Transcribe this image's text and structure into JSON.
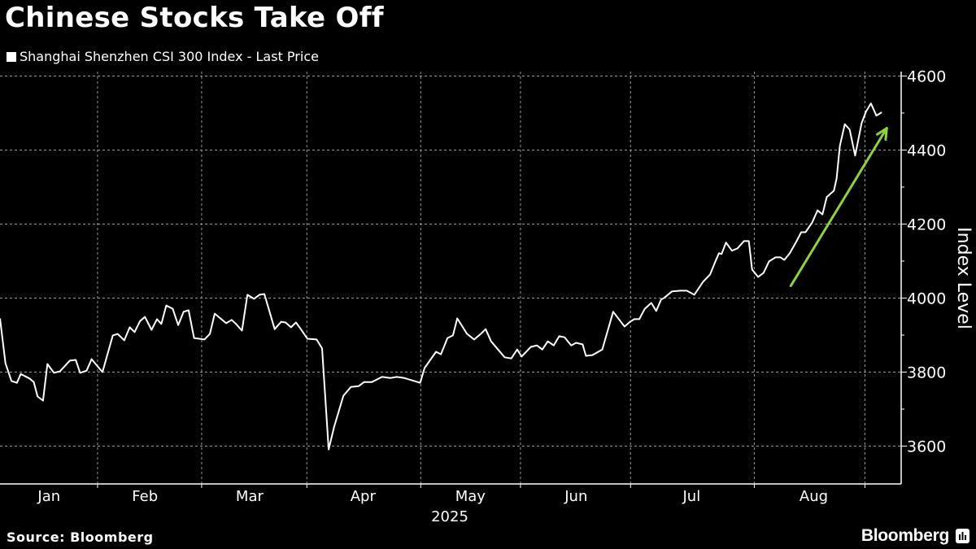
{
  "chart_data": {
    "type": "line",
    "title": "Chinese Stocks Take Off",
    "legend": [
      "Shanghai Shenzhen CSI 300 Index - Last Price"
    ],
    "legend_placement": "top-left",
    "xlabel": "2025",
    "ylabel": "Index Level",
    "x_unit": "trading session index (approx.)",
    "xlim": [
      0,
      164.9
    ],
    "ylim": [
      3500,
      4612
    ],
    "yticks": [
      3600,
      3800,
      4000,
      4200,
      4400,
      4600
    ],
    "yminor": [
      3700,
      3900,
      4100,
      4300,
      4500
    ],
    "month_labels": [
      {
        "label": "Jan",
        "x": 9.0
      },
      {
        "label": "Feb",
        "x": 26.6
      },
      {
        "label": "Mar",
        "x": 45.8
      },
      {
        "label": "Apr",
        "x": 66.6
      },
      {
        "label": "May",
        "x": 86.3
      },
      {
        "label": "Jun",
        "x": 105.7
      },
      {
        "label": "Jul",
        "x": 126.9
      },
      {
        "label": "Aug",
        "x": 149.3
      }
    ],
    "x_gridlines": [
      17.9,
      37.0,
      56.3,
      77.2,
      95.5,
      115.7,
      138.4,
      158.7
    ],
    "grid": true,
    "series": [
      {
        "name": "Shanghai Shenzhen CSI 300 Index - Last Price",
        "color": "#ffffff",
        "points": [
          [
            0,
            3945
          ],
          [
            1.0,
            3824
          ],
          [
            2.1,
            3776
          ],
          [
            3.1,
            3771
          ],
          [
            3.8,
            3795
          ],
          [
            5.5,
            3782
          ],
          [
            6.2,
            3773
          ],
          [
            6.9,
            3734
          ],
          [
            7.9,
            3723
          ],
          [
            8.7,
            3822
          ],
          [
            9.9,
            3798
          ],
          [
            11.0,
            3802
          ],
          [
            12.8,
            3831
          ],
          [
            13.9,
            3833
          ],
          [
            14.7,
            3798
          ],
          [
            15.9,
            3804
          ],
          [
            16.8,
            3835
          ],
          [
            18.8,
            3800
          ],
          [
            20.7,
            3899
          ],
          [
            21.6,
            3903
          ],
          [
            22.8,
            3886
          ],
          [
            23.8,
            3921
          ],
          [
            24.7,
            3908
          ],
          [
            25.7,
            3938
          ],
          [
            26.6,
            3949
          ],
          [
            27.8,
            3914
          ],
          [
            28.8,
            3943
          ],
          [
            29.6,
            3930
          ],
          [
            30.5,
            3980
          ],
          [
            31.7,
            3971
          ],
          [
            32.7,
            3927
          ],
          [
            33.7,
            3963
          ],
          [
            34.6,
            3967
          ],
          [
            35.6,
            3892
          ],
          [
            37.5,
            3888
          ],
          [
            38.5,
            3903
          ],
          [
            39.4,
            3958
          ],
          [
            41.5,
            3932
          ],
          [
            42.5,
            3941
          ],
          [
            43.3,
            3930
          ],
          [
            44.4,
            3912
          ],
          [
            45.4,
            4009
          ],
          [
            46.6,
            3998
          ],
          [
            47.6,
            4009
          ],
          [
            48.5,
            4011
          ],
          [
            49.3,
            3971
          ],
          [
            50.4,
            3916
          ],
          [
            51.6,
            3936
          ],
          [
            52.4,
            3934
          ],
          [
            53.4,
            3921
          ],
          [
            54.3,
            3934
          ],
          [
            55.2,
            3916
          ],
          [
            56.4,
            3890
          ],
          [
            58.1,
            3888
          ],
          [
            59.1,
            3864
          ],
          [
            60.3,
            3591
          ],
          [
            61.3,
            3652
          ],
          [
            63.0,
            3736
          ],
          [
            64.4,
            3760
          ],
          [
            65.8,
            3762
          ],
          [
            66.8,
            3773
          ],
          [
            68.2,
            3773
          ],
          [
            70.1,
            3787
          ],
          [
            71.6,
            3784
          ],
          [
            72.8,
            3787
          ],
          [
            74.2,
            3784
          ],
          [
            77.1,
            3771
          ],
          [
            77.9,
            3811
          ],
          [
            80.0,
            3855
          ],
          [
            80.9,
            3848
          ],
          [
            82.1,
            3892
          ],
          [
            83.1,
            3899
          ],
          [
            83.9,
            3945
          ],
          [
            85.7,
            3903
          ],
          [
            87.0,
            3888
          ],
          [
            88.2,
            3903
          ],
          [
            89.1,
            3916
          ],
          [
            90.1,
            3883
          ],
          [
            92.6,
            3840
          ],
          [
            93.8,
            3837
          ],
          [
            94.9,
            3861
          ],
          [
            95.7,
            3842
          ],
          [
            97.4,
            3868
          ],
          [
            98.5,
            3872
          ],
          [
            99.5,
            3861
          ],
          [
            100.5,
            3883
          ],
          [
            101.6,
            3872
          ],
          [
            102.6,
            3897
          ],
          [
            103.6,
            3894
          ],
          [
            104.8,
            3872
          ],
          [
            105.7,
            3879
          ],
          [
            106.9,
            3875
          ],
          [
            107.5,
            3844
          ],
          [
            108.7,
            3846
          ],
          [
            110.5,
            3861
          ],
          [
            112.5,
            3963
          ],
          [
            114.6,
            3923
          ],
          [
            115.6,
            3936
          ],
          [
            116.4,
            3943
          ],
          [
            117.3,
            3943
          ],
          [
            118.3,
            3971
          ],
          [
            119.5,
            3987
          ],
          [
            120.4,
            3965
          ],
          [
            121.3,
            3996
          ],
          [
            121.8,
            4000
          ],
          [
            123.3,
            4018
          ],
          [
            124.9,
            4020
          ],
          [
            126.0,
            4020
          ],
          [
            127.4,
            4009
          ],
          [
            129.0,
            4044
          ],
          [
            130.3,
            4064
          ],
          [
            131.2,
            4097
          ],
          [
            131.9,
            4121
          ],
          [
            132.4,
            4119
          ],
          [
            133.2,
            4150
          ],
          [
            134.3,
            4128
          ],
          [
            135.3,
            4134
          ],
          [
            136.5,
            4154
          ],
          [
            137.4,
            4154
          ],
          [
            138.0,
            4077
          ],
          [
            139.1,
            4057
          ],
          [
            140.1,
            4068
          ],
          [
            141.1,
            4099
          ],
          [
            142.3,
            4110
          ],
          [
            143.2,
            4110
          ],
          [
            143.9,
            4103
          ],
          [
            144.9,
            4121
          ],
          [
            146.1,
            4152
          ],
          [
            147.0,
            4178
          ],
          [
            147.8,
            4178
          ],
          [
            149.0,
            4204
          ],
          [
            150.0,
            4237
          ],
          [
            150.9,
            4226
          ],
          [
            151.7,
            4273
          ],
          [
            153.0,
            4290
          ],
          [
            153.5,
            4323
          ],
          [
            154.1,
            4411
          ],
          [
            155.0,
            4470
          ],
          [
            155.9,
            4455
          ],
          [
            156.9,
            4385
          ],
          [
            158.1,
            4473
          ],
          [
            158.9,
            4504
          ],
          [
            159.8,
            4526
          ],
          [
            160.8,
            4493
          ],
          [
            161.8,
            4502
          ]
        ]
      }
    ],
    "annotation_arrow": {
      "color": "#8fd13f",
      "from": [
        145.1,
        4033
      ],
      "to": [
        162.7,
        4459
      ]
    }
  },
  "footer": {
    "source": "Source: Bloomberg",
    "logo": "Bloomberg"
  }
}
